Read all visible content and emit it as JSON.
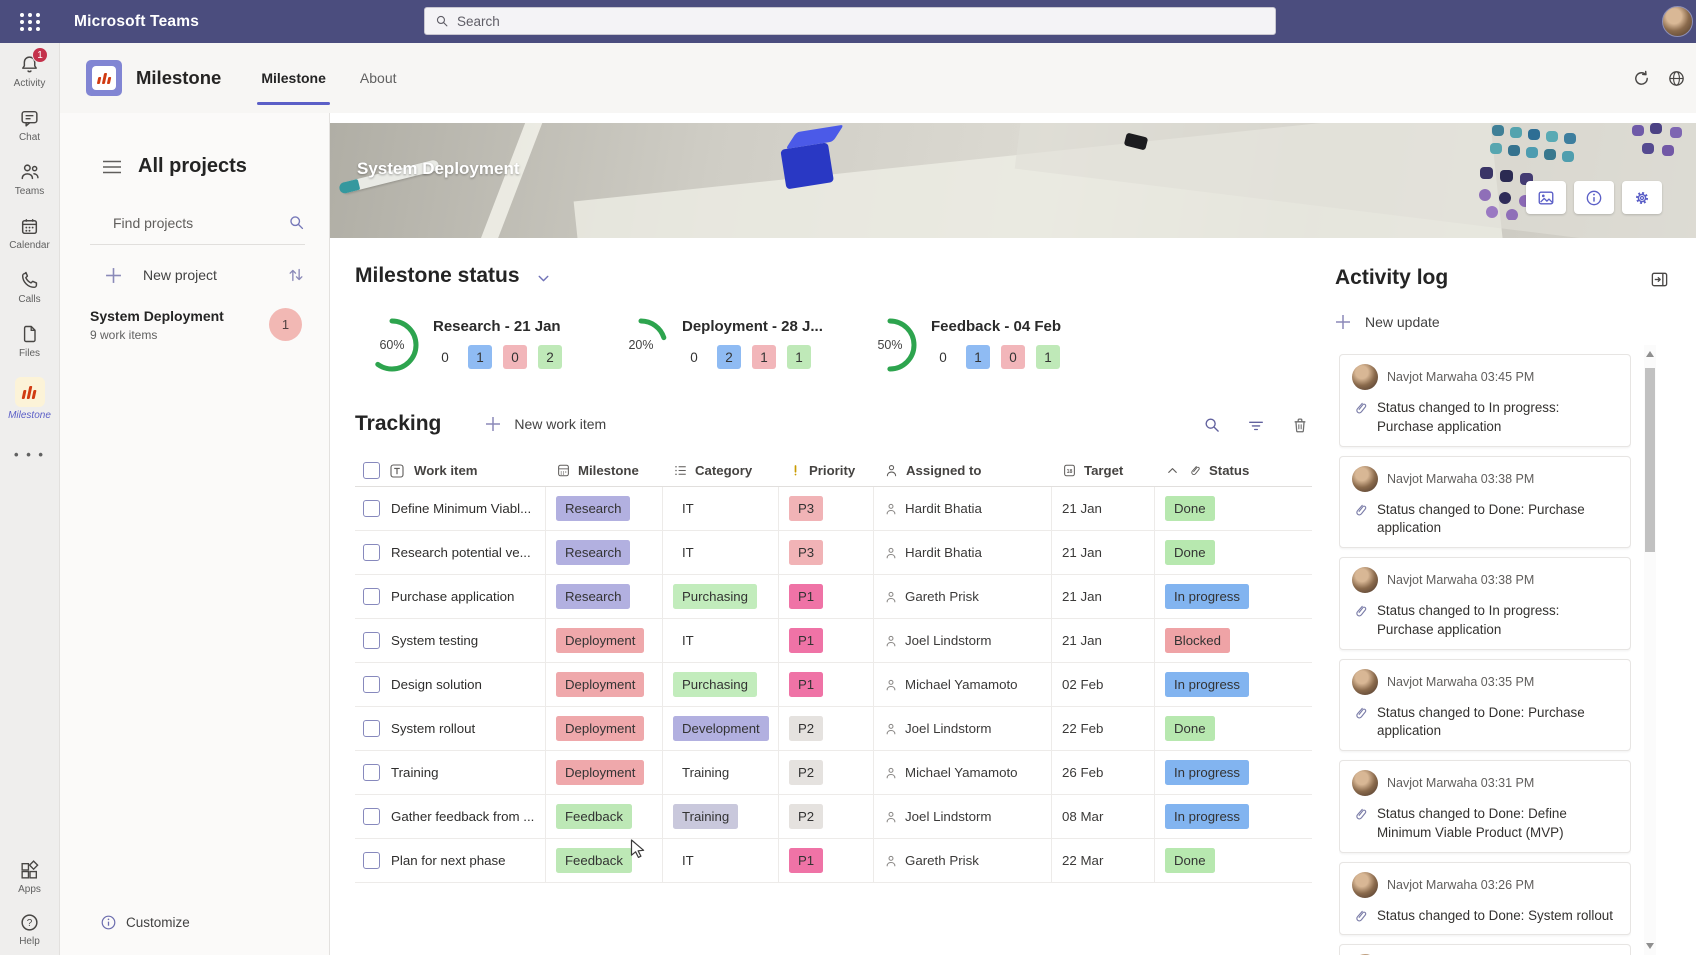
{
  "topbar": {
    "title": "Microsoft Teams",
    "search_placeholder": "Search"
  },
  "rail": {
    "items": [
      {
        "label": "Activity",
        "badge": "1"
      },
      {
        "label": "Chat"
      },
      {
        "label": "Teams"
      },
      {
        "label": "Calendar"
      },
      {
        "label": "Calls"
      },
      {
        "label": "Files"
      },
      {
        "label": "Milestone",
        "active": true
      }
    ],
    "apps_label": "Apps",
    "help_label": "Help"
  },
  "app_header": {
    "title": "Milestone",
    "tabs": [
      {
        "label": "Milestone",
        "active": true
      },
      {
        "label": "About"
      }
    ]
  },
  "sidebar": {
    "title": "All projects",
    "find_placeholder": "Find projects",
    "new_project_label": "New project",
    "project": {
      "name": "System Deployment",
      "meta": "9 work items",
      "badge": "1"
    },
    "customize_label": "Customize"
  },
  "banner": {
    "title": "System Deployment"
  },
  "milestone_status": {
    "title": "Milestone status",
    "gauges": [
      {
        "percent": 60,
        "percent_label": "60%",
        "label": "Research - 21 Jan",
        "counts": [
          {
            "value": "0",
            "bg": ""
          },
          {
            "value": "1",
            "bg": "#8fbbf3"
          },
          {
            "value": "0",
            "bg": "#f2b6ba"
          },
          {
            "value": "2",
            "bg": "#bfe9b8"
          }
        ]
      },
      {
        "percent": 20,
        "percent_label": "20%",
        "label": "Deployment - 28 J...",
        "counts": [
          {
            "value": "0",
            "bg": ""
          },
          {
            "value": "2",
            "bg": "#8fbbf3"
          },
          {
            "value": "1",
            "bg": "#f2b6ba"
          },
          {
            "value": "1",
            "bg": "#bfe9b8"
          }
        ]
      },
      {
        "percent": 50,
        "percent_label": "50%",
        "label": "Feedback - 04 Feb",
        "counts": [
          {
            "value": "0",
            "bg": ""
          },
          {
            "value": "1",
            "bg": "#8fbbf3"
          },
          {
            "value": "0",
            "bg": "#f2b6ba"
          },
          {
            "value": "1",
            "bg": "#bfe9b8"
          }
        ]
      }
    ]
  },
  "tracking": {
    "title": "Tracking",
    "new_item_label": "New work item",
    "columns": [
      "Work item",
      "Milestone",
      "Category",
      "Priority",
      "Assigned to",
      "Target",
      "Status"
    ],
    "rows": [
      {
        "work_item": "Define Minimum Viabl...",
        "milestone": {
          "label": "Research",
          "bg": "#b2b0e0"
        },
        "category": {
          "label": "IT",
          "bg": ""
        },
        "priority": {
          "label": "P3",
          "bg": "#f1b3b6"
        },
        "assigned_to": "Hardit Bhatia",
        "target": "21 Jan",
        "status": {
          "label": "Done",
          "bg": "#b7e8af"
        }
      },
      {
        "work_item": "Research potential ve...",
        "milestone": {
          "label": "Research",
          "bg": "#b2b0e0"
        },
        "category": {
          "label": "IT",
          "bg": ""
        },
        "priority": {
          "label": "P3",
          "bg": "#f1b3b6"
        },
        "assigned_to": "Hardit Bhatia",
        "target": "21 Jan",
        "status": {
          "label": "Done",
          "bg": "#b7e8af"
        }
      },
      {
        "work_item": "Purchase application",
        "milestone": {
          "label": "Research",
          "bg": "#b2b0e0"
        },
        "category": {
          "label": "Purchasing",
          "bg": "#c2ecbc"
        },
        "priority": {
          "label": "P1",
          "bg": "#ef73a6"
        },
        "assigned_to": "Gareth Prisk",
        "target": "21 Jan",
        "status": {
          "label": "In progress",
          "bg": "#82b4f0"
        }
      },
      {
        "work_item": "System testing",
        "milestone": {
          "label": "Deployment",
          "bg": "#efa8ab"
        },
        "category": {
          "label": "IT",
          "bg": ""
        },
        "priority": {
          "label": "P1",
          "bg": "#ef73a6"
        },
        "assigned_to": "Joel Lindstorm",
        "target": "21 Jan",
        "status": {
          "label": "Blocked",
          "bg": "#efa3a6"
        }
      },
      {
        "work_item": "Design solution",
        "milestone": {
          "label": "Deployment",
          "bg": "#efa8ab"
        },
        "category": {
          "label": "Purchasing",
          "bg": "#c2ecbc"
        },
        "priority": {
          "label": "P1",
          "bg": "#ef73a6"
        },
        "assigned_to": "Michael Yamamoto",
        "target": "02 Feb",
        "status": {
          "label": "In progress",
          "bg": "#82b4f0"
        }
      },
      {
        "work_item": "System rollout",
        "milestone": {
          "label": "Deployment",
          "bg": "#efa8ab"
        },
        "category": {
          "label": "Development",
          "bg": "#b2b0e0"
        },
        "priority": {
          "label": "P2",
          "bg": "#e5e2df"
        },
        "assigned_to": "Joel Lindstorm",
        "target": "22 Feb",
        "status": {
          "label": "Done",
          "bg": "#b7e8af"
        }
      },
      {
        "work_item": "Training",
        "milestone": {
          "label": "Deployment",
          "bg": "#efa8ab"
        },
        "category": {
          "label": "Training",
          "bg": ""
        },
        "priority": {
          "label": "P2",
          "bg": "#e5e2df"
        },
        "assigned_to": "Michael Yamamoto",
        "target": "26 Feb",
        "status": {
          "label": "In progress",
          "bg": "#82b4f0"
        }
      },
      {
        "work_item": "Gather feedback from ...",
        "milestone": {
          "label": "Feedback",
          "bg": "#bde8b6"
        },
        "category": {
          "label": "Training",
          "bg": "#c9c8dc"
        },
        "priority": {
          "label": "P2",
          "bg": "#e5e2df"
        },
        "assigned_to": "Joel Lindstorm",
        "target": "08 Mar",
        "status": {
          "label": "In progress",
          "bg": "#82b4f0"
        }
      },
      {
        "work_item": "Plan for next phase",
        "milestone": {
          "label": "Feedback",
          "bg": "#bde8b6"
        },
        "category": {
          "label": "IT",
          "bg": ""
        },
        "priority": {
          "label": "P1",
          "bg": "#ef73a6"
        },
        "assigned_to": "Gareth Prisk",
        "target": "22 Mar",
        "status": {
          "label": "Done",
          "bg": "#b7e8af"
        }
      }
    ]
  },
  "activity_log": {
    "title": "Activity log",
    "new_update_label": "New update",
    "entries": [
      {
        "author": "Navjot Marwaha",
        "time": "03:45 PM",
        "text": "Status changed to In progress: Purchase application"
      },
      {
        "author": "Navjot Marwaha",
        "time": "03:38 PM",
        "text": "Status changed to Done: Purchase application"
      },
      {
        "author": "Navjot Marwaha",
        "time": "03:38 PM",
        "text": "Status changed to In progress: Purchase application"
      },
      {
        "author": "Navjot Marwaha",
        "time": "03:35 PM",
        "text": "Status changed to Done: Purchase application"
      },
      {
        "author": "Navjot Marwaha",
        "time": "03:31 PM",
        "text": "Status changed to Done: Define Minimum Viable Product (MVP)"
      },
      {
        "author": "Navjot Marwaha",
        "time": "03:26 PM",
        "text": "Status changed to Done: System rollout"
      },
      {
        "author": "Navjot Marwaha",
        "time": "03:26 PM",
        "text": ""
      }
    ]
  },
  "colors": {
    "topbar": "#4b4d7e",
    "accent": "#5b5fc7",
    "gauge_green": "#2da44e",
    "count_blue": "#8fbbf3",
    "count_red": "#f2b6ba",
    "count_green": "#bfe9b8"
  },
  "icon_names": [
    "apps-launcher-icon",
    "search-icon",
    "bell-icon",
    "chat-icon",
    "teams-people-icon",
    "calendar-icon",
    "phone-icon",
    "file-icon",
    "milestone-bars-icon",
    "more-icon",
    "apps-grid-icon",
    "help-icon",
    "hamburger-icon",
    "sort-arrows-icon",
    "plus-icon",
    "chevron-down-icon",
    "filter-icon",
    "trash-icon",
    "refresh-icon",
    "globe-icon",
    "image-icon",
    "info-icon",
    "gear-icon",
    "text-field-icon",
    "list-icon",
    "priority-icon",
    "person-icon",
    "calendar-18-icon",
    "chevron-up-icon",
    "paperclip-icon",
    "open-panel-icon",
    "mouse-cursor-icon"
  ]
}
